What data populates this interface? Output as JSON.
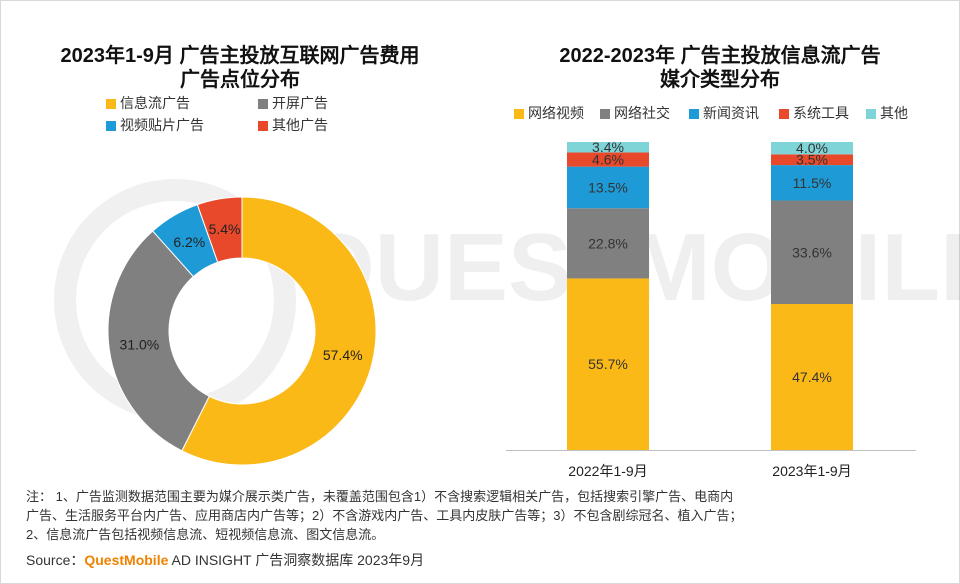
{
  "chart_data": [
    {
      "type": "pie",
      "title_line1": "2023年1-9月 广告主投放互联网广告费用",
      "title_line2": "广告点位分布",
      "slices": [
        {
          "name": "信息流广告",
          "value": 57.4,
          "label": "57.4%",
          "color": "#fbb917"
        },
        {
          "name": "开屏广告",
          "value": 31.0,
          "label": "31.0%",
          "color": "#808080"
        },
        {
          "name": "视频贴片广告",
          "value": 6.2,
          "label": "6.2%",
          "color": "#1e9bd7"
        },
        {
          "name": "其他广告",
          "value": 5.4,
          "label": "5.4%",
          "color": "#e8492b"
        }
      ]
    },
    {
      "type": "bar",
      "stacked": true,
      "title_line1": "2022-2023年 广告主投放信息流广告",
      "title_line2": "媒介类型分布",
      "categories": [
        "2022年1-9月",
        "2023年1-9月"
      ],
      "ylim": [
        0,
        100
      ],
      "series": [
        {
          "name": "网络视频",
          "color": "#fbb917",
          "label_color": "#333333",
          "values": [
            55.7,
            47.4
          ],
          "labels": [
            "55.7%",
            "47.4%"
          ]
        },
        {
          "name": "网络社交",
          "color": "#808080",
          "label_color": "#333333",
          "values": [
            22.8,
            33.6
          ],
          "labels": [
            "22.8%",
            "33.6%"
          ]
        },
        {
          "name": "新闻资讯",
          "color": "#1e9bd7",
          "label_color": "#333333",
          "values": [
            13.5,
            11.5
          ],
          "labels": [
            "13.5%",
            "11.5%"
          ]
        },
        {
          "name": "系统工具",
          "color": "#e8492b",
          "label_color": "#333333",
          "values": [
            4.6,
            3.5
          ],
          "labels": [
            "4.6%",
            "3.5%"
          ]
        },
        {
          "name": "其他",
          "color": "#7fd4d8",
          "label_color": "#333333",
          "values": [
            3.4,
            4.0
          ],
          "labels": [
            "3.4%",
            "4.0%"
          ]
        }
      ]
    }
  ],
  "note": {
    "line1": "注： 1、广告监测数据范围主要为媒介展示类广告，未覆盖范围包含1）不含搜索逻辑相关广告，包括搜索引擎广告、电商内",
    "line2": "广告、生活服务平台内广告、应用商店内广告等；2）不含游戏内广告、工具内皮肤广告等；3）不包含剧综冠名、植入广告；",
    "line3": "2、信息流广告包括视频信息流、短视频信息流、图文信息流。"
  },
  "source": {
    "prefix": "Source：",
    "brand": "QuestMobile",
    "rest": " AD INSIGHT 广告洞察数据库 2023年9月"
  },
  "watermark": {
    "text": "QUESTMOBILE"
  }
}
